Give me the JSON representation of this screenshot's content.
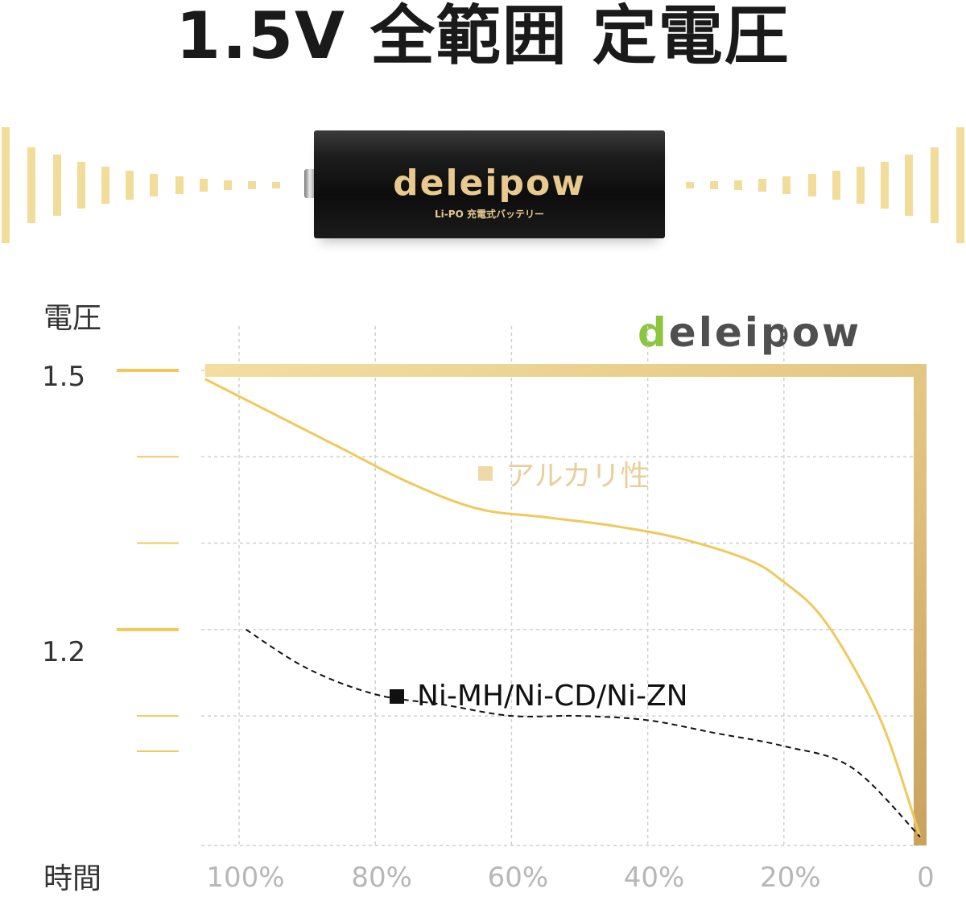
{
  "headline": "1.5V 全範囲 定電圧",
  "battery": {
    "brand": "deleipow",
    "sub_label": "Li-PO 充電式バッテリー"
  },
  "logo": {
    "text_first": "d",
    "text_rest": "eleipow"
  },
  "colors": {
    "gold": "#f0c95c",
    "gold_dark": "#d7b06c",
    "light_gold": "#e8d49c",
    "grid": "#cfcfcf",
    "logo_green": "#8cc63f",
    "black": "#111111"
  },
  "chart_data": {
    "type": "line",
    "ylabel": "電圧",
    "xlabel": "時間",
    "x_ticks": [
      "100%",
      "80%",
      "60%",
      "40%",
      "20%",
      "0"
    ],
    "y_ticks": [
      "1.5",
      "1.2"
    ],
    "x_reversed": true,
    "xlim": [
      105,
      0
    ],
    "ylim": [
      0.95,
      1.5
    ],
    "grid": true,
    "series": [
      {
        "name": "",
        "style": "solid-thick",
        "color": "#d7b06c",
        "x": [
          105,
          0,
          0
        ],
        "y": [
          1.5,
          1.5,
          0.95
        ]
      },
      {
        "name": "アルカリ性",
        "style": "solid",
        "color": "#f0c95c",
        "x": [
          105,
          95,
          85,
          75,
          65,
          55,
          45,
          35,
          25,
          20,
          15,
          10,
          5,
          0
        ],
        "y": [
          1.49,
          1.45,
          1.41,
          1.37,
          1.34,
          1.33,
          1.32,
          1.305,
          1.28,
          1.255,
          1.22,
          1.16,
          1.08,
          0.96
        ]
      },
      {
        "name": "Ni-MH/Ni-CD/Ni-ZN",
        "style": "dashed",
        "color": "#111111",
        "x": [
          99,
          90,
          80,
          70,
          60,
          50,
          40,
          30,
          20,
          10,
          0
        ],
        "y": [
          1.2,
          1.155,
          1.125,
          1.113,
          1.1,
          1.1,
          1.095,
          1.08,
          1.065,
          1.04,
          0.96
        ]
      }
    ]
  }
}
